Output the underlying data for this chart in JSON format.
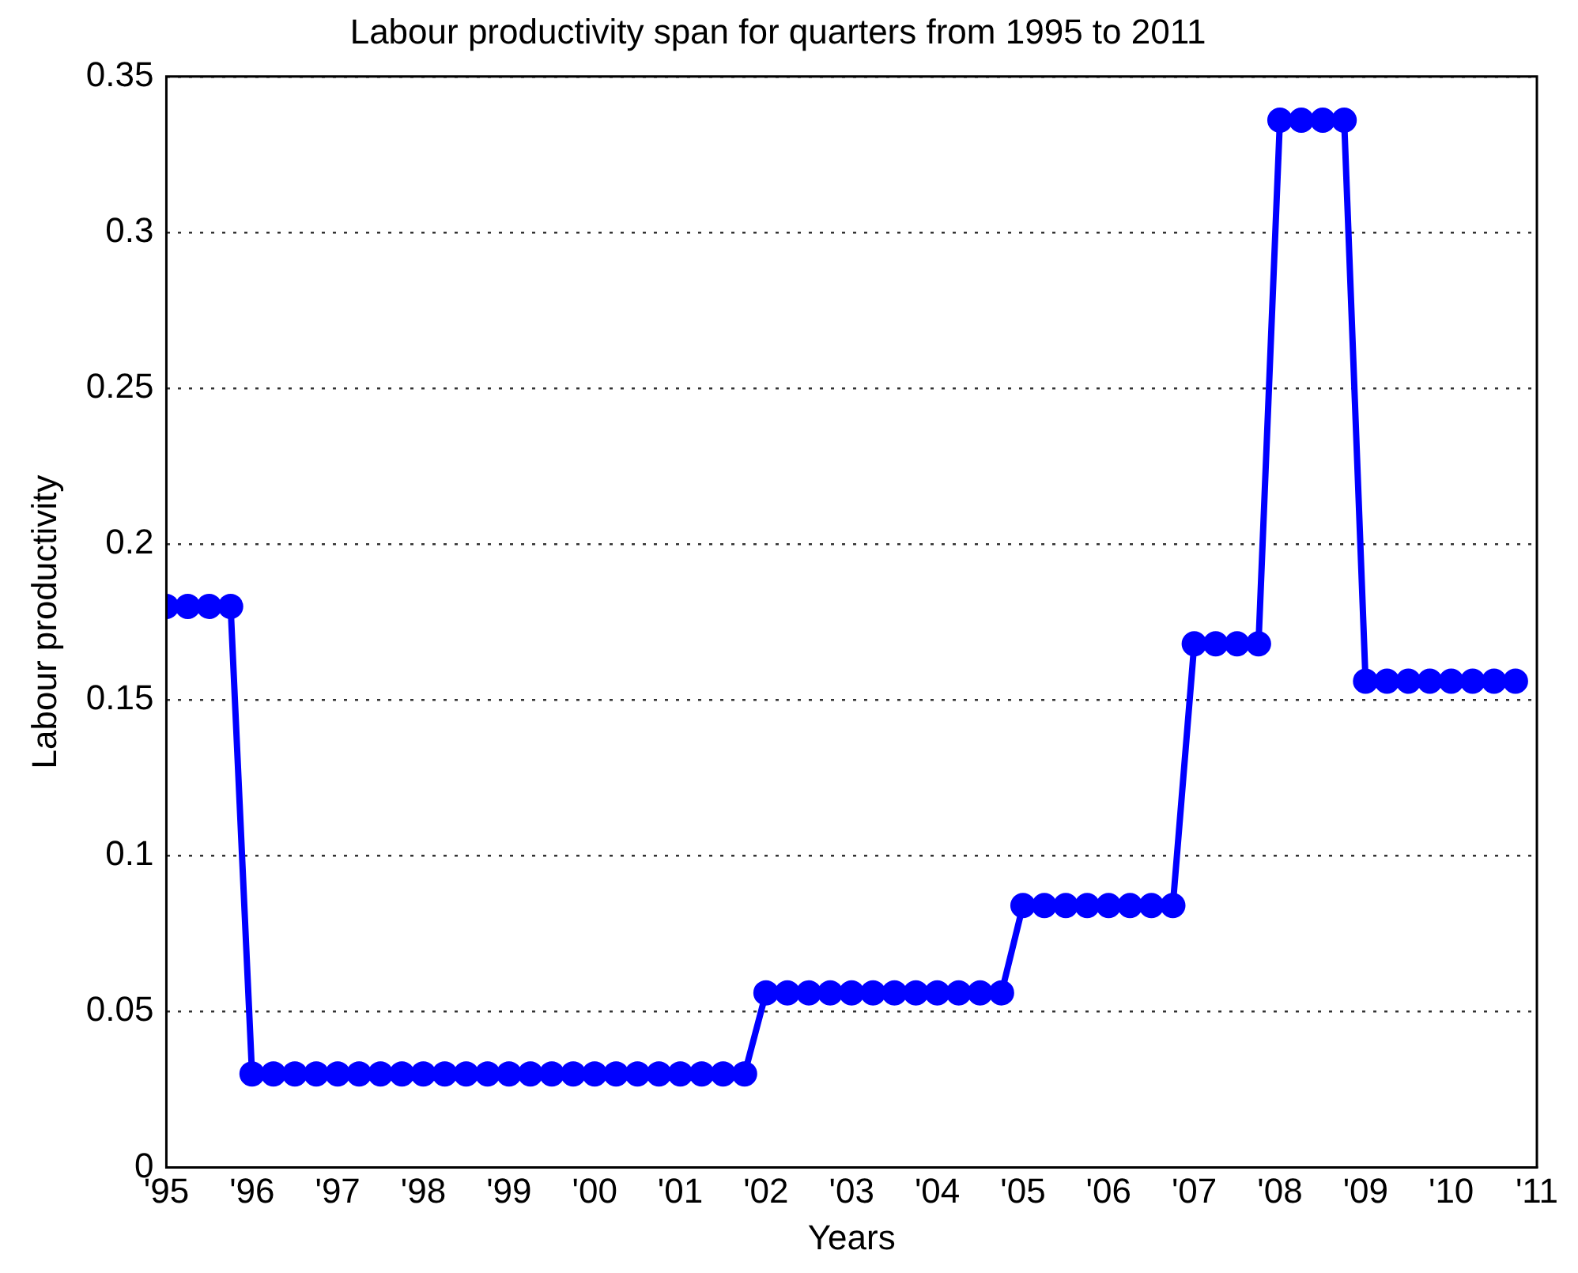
{
  "chart_data": {
    "type": "line",
    "title": "Labour productivity span for quarters from 1995 to 2011",
    "xlabel": "Years",
    "ylabel": "Labour productivity",
    "x": [
      1995,
      1995.25,
      1995.5,
      1995.75,
      1996,
      1996.25,
      1996.5,
      1996.75,
      1997,
      1997.25,
      1997.5,
      1997.75,
      1998,
      1998.25,
      1998.5,
      1998.75,
      1999,
      1999.25,
      1999.5,
      1999.75,
      2000,
      2000.25,
      2000.5,
      2000.75,
      2001,
      2001.25,
      2001.5,
      2001.75,
      2002,
      2002.25,
      2002.5,
      2002.75,
      2003,
      2003.25,
      2003.5,
      2003.75,
      2004,
      2004.25,
      2004.5,
      2004.75,
      2005,
      2005.25,
      2005.5,
      2005.75,
      2006,
      2006.25,
      2006.5,
      2006.75,
      2007,
      2007.25,
      2007.5,
      2007.75,
      2008,
      2008.25,
      2008.5,
      2008.75,
      2009,
      2009.25,
      2009.5,
      2009.75,
      2010,
      2010.25,
      2010.5,
      2010.75
    ],
    "series": [
      {
        "color": "#0000ff",
        "values": [
          0.18,
          0.18,
          0.18,
          0.18,
          0.03,
          0.03,
          0.03,
          0.03,
          0.03,
          0.03,
          0.03,
          0.03,
          0.03,
          0.03,
          0.03,
          0.03,
          0.03,
          0.03,
          0.03,
          0.03,
          0.03,
          0.03,
          0.03,
          0.03,
          0.03,
          0.03,
          0.03,
          0.03,
          0.056,
          0.056,
          0.056,
          0.056,
          0.056,
          0.056,
          0.056,
          0.056,
          0.056,
          0.056,
          0.056,
          0.056,
          0.084,
          0.084,
          0.084,
          0.084,
          0.084,
          0.084,
          0.084,
          0.084,
          0.168,
          0.168,
          0.168,
          0.168,
          0.336,
          0.336,
          0.336,
          0.336,
          0.156,
          0.156,
          0.156,
          0.156,
          0.156,
          0.156,
          0.156,
          0.156
        ]
      }
    ],
    "xlim": [
      1995,
      2011
    ],
    "xticks": [
      {
        "value": 1995,
        "label": "'95"
      },
      {
        "value": 1996,
        "label": "'96"
      },
      {
        "value": 1997,
        "label": "'97"
      },
      {
        "value": 1998,
        "label": "'98"
      },
      {
        "value": 1999,
        "label": "'99"
      },
      {
        "value": 2000,
        "label": "'00"
      },
      {
        "value": 2001,
        "label": "'01"
      },
      {
        "value": 2002,
        "label": "'02"
      },
      {
        "value": 2003,
        "label": "'03"
      },
      {
        "value": 2004,
        "label": "'04"
      },
      {
        "value": 2005,
        "label": "'05"
      },
      {
        "value": 2006,
        "label": "'06"
      },
      {
        "value": 2007,
        "label": "'07"
      },
      {
        "value": 2008,
        "label": "'08"
      },
      {
        "value": 2009,
        "label": "'09"
      },
      {
        "value": 2010,
        "label": "'10"
      },
      {
        "value": 2011,
        "label": "'11"
      }
    ],
    "ylim": [
      0,
      0.35
    ],
    "yticks": [
      0,
      0.05,
      0.1,
      0.15,
      0.2,
      0.25,
      0.3,
      0.35
    ],
    "grid": "y",
    "legend": false,
    "marker": "circle",
    "line_style": "solid"
  }
}
